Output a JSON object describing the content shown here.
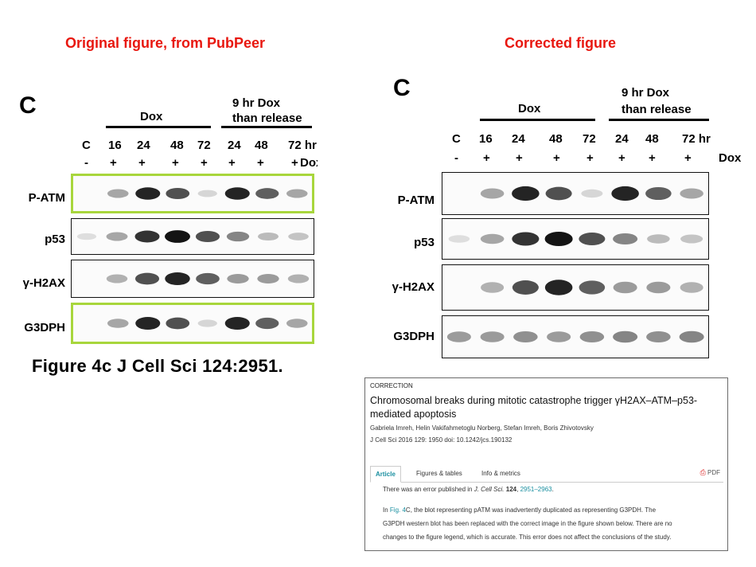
{
  "headings": {
    "left": "Original figure, from PubPeer",
    "right": "Corrected figure"
  },
  "left_panel": {
    "letter": "C",
    "dox": "Dox",
    "release_line1": "9 hr Dox",
    "release_line2": "than release",
    "time_labels": [
      "C",
      "16",
      "24",
      "48",
      "72",
      "24",
      "48",
      "72 hr"
    ],
    "sign_labels": [
      "-",
      "+",
      "+",
      "+",
      "+",
      "+",
      "+",
      "+"
    ],
    "dox_row_label": "Dox",
    "row_labels": [
      "P-ATM",
      "p53",
      "γ-H2AX",
      "G3DPH"
    ],
    "caption": "Figure 4c J Cell Sci 124:2951."
  },
  "right_panel": {
    "letter": "C",
    "dox": "Dox",
    "release_line1": "9 hr Dox",
    "release_line2": "than release",
    "time_labels": [
      "C",
      "16",
      "24",
      "48",
      "72",
      "24",
      "48",
      "72 hr"
    ],
    "sign_labels": [
      "-",
      "+",
      "+",
      "+",
      "+",
      "+",
      "+",
      "+"
    ],
    "dox_row_label": "Dox",
    "row_labels": [
      "P-ATM",
      "p53",
      "γ-H2AX",
      "G3DPH"
    ]
  },
  "article": {
    "label": "CORRECTION",
    "title": "Chromosomal breaks during mitotic catastrophe trigger γH2AX–ATM–p53-mediated apoptosis",
    "authors": "Gabriela Imreh, Helin Vakifahmetoglu Norberg, Stefan Imreh, Boris Zhivotovsky",
    "citation": "J Cell Sci 2016 129: 1950 doi: 10.1242/jcs.190132",
    "tabs": [
      "Article",
      "Figures & tables",
      "Info & metrics"
    ],
    "pdf": "PDF",
    "line1_pre": "There was an error published in ",
    "line1_journal": "J. Cell Sci.",
    "line1_vol": " 124",
    "line1_sep": ", ",
    "line1_pages": "2951–2963",
    "line1_end": ".",
    "line2_pre": "In ",
    "line2_link": "Fig. 4",
    "line2_rest": "C, the blot representing pATM was inadvertently duplicated as representing G3PDH. The",
    "line3": "G3PDH western blot has been replaced with the correct image in the figure shown below. There are no",
    "line4": "changes to the figure legend, which is accurate. This error does not affect the conclusions of the study."
  },
  "colors": {
    "heading_red": "#e8170f",
    "highlight_green": "#a8d63c",
    "link_teal": "#1a8fa0"
  },
  "blot_intensity": {
    "p_atm": [
      0.0,
      0.45,
      0.95,
      0.8,
      0.2,
      0.95,
      0.75,
      0.45
    ],
    "p53": [
      0.15,
      0.45,
      0.9,
      1.0,
      0.8,
      0.6,
      0.35,
      0.3
    ],
    "gamma_h2ax": [
      0.0,
      0.4,
      0.8,
      0.95,
      0.75,
      0.5,
      0.5,
      0.4
    ],
    "g3dph_corrected": [
      0.5,
      0.5,
      0.55,
      0.5,
      0.55,
      0.6,
      0.55,
      0.6
    ]
  }
}
